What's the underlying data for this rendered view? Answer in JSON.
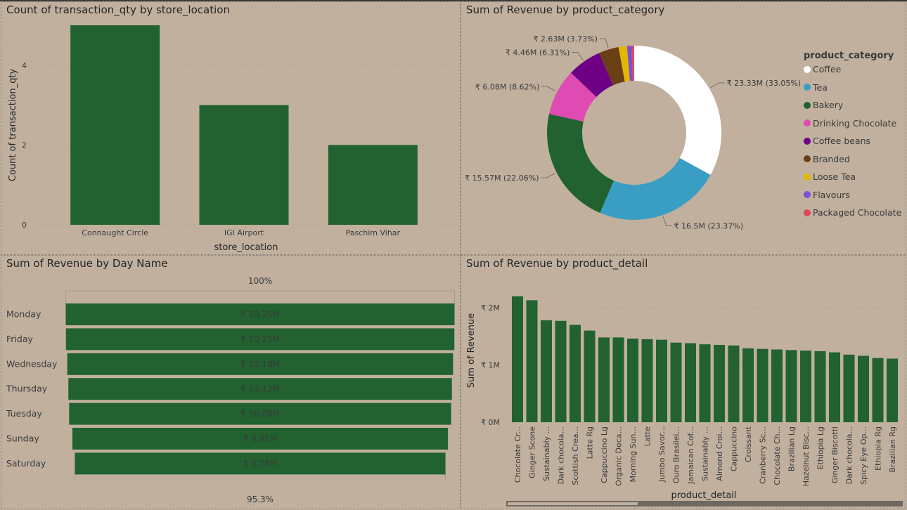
{
  "colors": {
    "bar": "#216230",
    "coffee": "#ffffff",
    "tea": "#3a9ec4",
    "bakery": "#216230",
    "drinking_chocolate": "#e04ab3",
    "coffee_beans": "#6e0085",
    "branded": "#6b3f16",
    "loose_tea": "#e0b800",
    "flavours": "#7b4fd6",
    "packaged_chocolate": "#e0475a"
  },
  "chart_data": [
    {
      "type": "bar",
      "title": "Count of transaction_qty by store_location",
      "xlabel": "store_location",
      "ylabel": "Count of transaction_qty",
      "categories": [
        "Connaught Circle",
        "IGI Airport",
        "Paschim Vihar"
      ],
      "values": [
        5,
        3,
        2
      ],
      "ylim": [
        0,
        5
      ],
      "yticks": [
        "0",
        "2",
        "4"
      ],
      "ytick_values": [
        0,
        2,
        4
      ],
      "grid": true
    },
    {
      "type": "pie",
      "title": "Sum of Revenue by product_category",
      "legend_title": "product_category",
      "legend_position": "right",
      "slices": [
        {
          "name": "Coffee",
          "value": 23.33,
          "label": "₹ 23.33M (33.05%)"
        },
        {
          "name": "Tea",
          "value": 16.5,
          "label": "₹ 16.5M (23.37%)"
        },
        {
          "name": "Bakery",
          "value": 15.57,
          "label": "₹ 15.57M (22.06%)"
        },
        {
          "name": "Drinking Chocolate",
          "value": 6.08,
          "label": "₹ 6.08M (8.62%)"
        },
        {
          "name": "Coffee beans",
          "value": 4.46,
          "label": "₹ 4.46M (6.31%)"
        },
        {
          "name": "Branded",
          "value": 2.63,
          "label": "₹ 2.63M (3.73%)"
        },
        {
          "name": "Loose Tea",
          "value": 1.1,
          "label": ""
        },
        {
          "name": "Flavours",
          "value": 0.6,
          "label": ""
        },
        {
          "name": "Packaged Chocolate",
          "value": 0.33,
          "label": ""
        }
      ]
    },
    {
      "type": "bar",
      "orientation": "funnel",
      "title": "Sum of Revenue by Day Name",
      "top_label": "100%",
      "bottom_label": "95.3%",
      "categories": [
        "Monday",
        "Friday",
        "Wednesday",
        "Thursday",
        "Tuesday",
        "Sunday",
        "Saturday"
      ],
      "values": [
        10.26,
        10.25,
        10.18,
        10.12,
        10.08,
        9.91,
        9.78
      ],
      "value_labels": [
        "₹ 10.26M",
        "₹ 10.25M",
        "₹ 10.18M",
        "₹ 10.12M",
        "₹ 10.08M",
        "₹ 9.91M",
        "₹ 9.78M"
      ]
    },
    {
      "type": "bar",
      "title": "Sum of Revenue by product_detail",
      "xlabel": "product_detail",
      "ylabel": "Sum of Revenue",
      "ylim": [
        0,
        2.3
      ],
      "yticks": [
        "₹ 0M",
        "₹ 1M",
        "₹ 2M"
      ],
      "ytick_values": [
        0,
        1,
        2
      ],
      "categories": [
        "Chocolate Cr...",
        "Ginger Scone",
        "Sustainably ...",
        "Dark chocola...",
        "Scottish Crea...",
        "Latte Rg",
        "Cappuccino Lg",
        "Organic Deca...",
        "Morning Sun...",
        "Latte",
        "Jumbo Savor...",
        "Ouro Brasilei...",
        "Jamaican Cof...",
        "Sustainably ...",
        "Almond Croi...",
        "Cappuccino",
        "Croissant",
        "Cranberry Sc...",
        "Chocolate Ch...",
        "Brazilian Lg",
        "Hazelnut Bisc...",
        "Ethiopia Lg",
        "Ginger Biscotti",
        "Dark chocola...",
        "Spicy Eye Op...",
        "Ethiopia Rg",
        "Brazilian Rg"
      ],
      "values": [
        2.2,
        2.13,
        1.78,
        1.77,
        1.7,
        1.6,
        1.48,
        1.48,
        1.46,
        1.45,
        1.44,
        1.39,
        1.38,
        1.36,
        1.35,
        1.34,
        1.29,
        1.28,
        1.27,
        1.26,
        1.25,
        1.24,
        1.22,
        1.18,
        1.16,
        1.12,
        1.11
      ]
    }
  ]
}
